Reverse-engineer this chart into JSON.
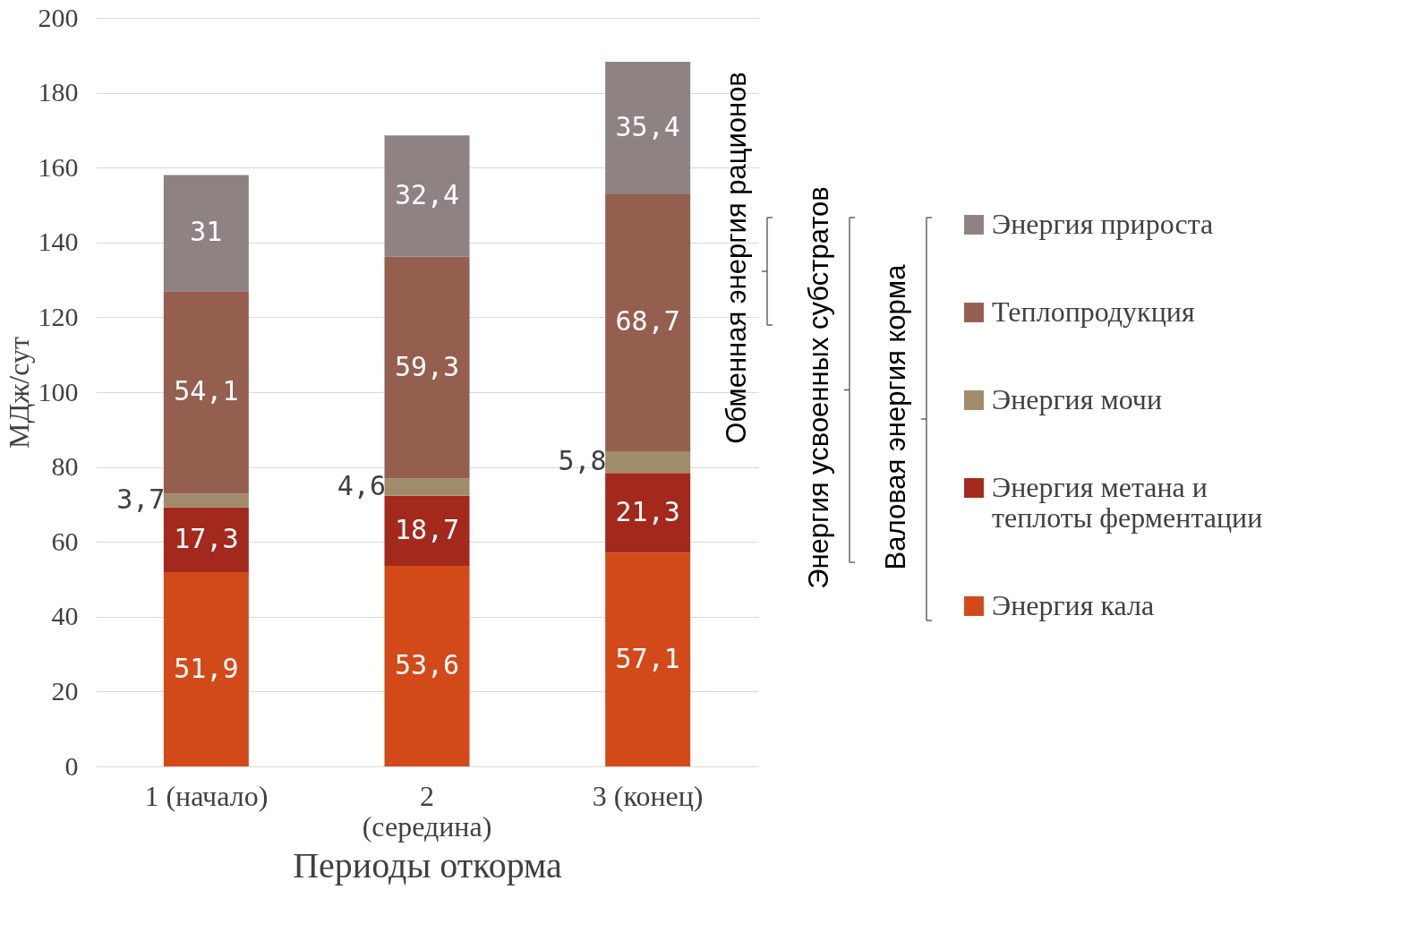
{
  "chart_data": {
    "type": "bar",
    "stacked": true,
    "ylabel": "МДж/сут",
    "xlabel": "Периоды откорма",
    "categories": [
      "1 (начало)",
      "2 (середина)",
      "3 (конец)"
    ],
    "series": [
      {
        "name": "Энергия кала",
        "color": "#d24a1a",
        "values": [
          51.9,
          53.6,
          57.1
        ],
        "value_labels": [
          "51,9",
          "53,6",
          "57,1"
        ]
      },
      {
        "name": "Энергия метана и теплоты ферментации",
        "color": "#a3291d",
        "values": [
          17.3,
          18.7,
          21.3
        ],
        "value_labels": [
          "17,3",
          "18,7",
          "21,3"
        ]
      },
      {
        "name": "Энергия мочи",
        "color": "#a08b6a",
        "values": [
          3.7,
          4.6,
          5.8
        ],
        "value_labels": [
          "3,7",
          "4,6",
          "5,8"
        ]
      },
      {
        "name": "Теплопродукция",
        "color": "#945f4f",
        "values": [
          54.1,
          59.3,
          68.7
        ],
        "value_labels": [
          "54,1",
          "59,3",
          "68,7"
        ]
      },
      {
        "name": "Энергия прироста",
        "color": "#8f8282",
        "values": [
          31,
          32.4,
          35.4
        ],
        "value_labels": [
          "31",
          "32,4",
          "35,4"
        ]
      }
    ],
    "ylim": [
      0,
      200
    ],
    "yticks": [
      0,
      20,
      40,
      60,
      80,
      100,
      120,
      140,
      160,
      180,
      200
    ],
    "grid": "y",
    "legend": "right",
    "annotations": [
      "Обменная энергия рационов",
      "Энергия усвоенных субстратов",
      "Валовая энергия корма"
    ]
  }
}
